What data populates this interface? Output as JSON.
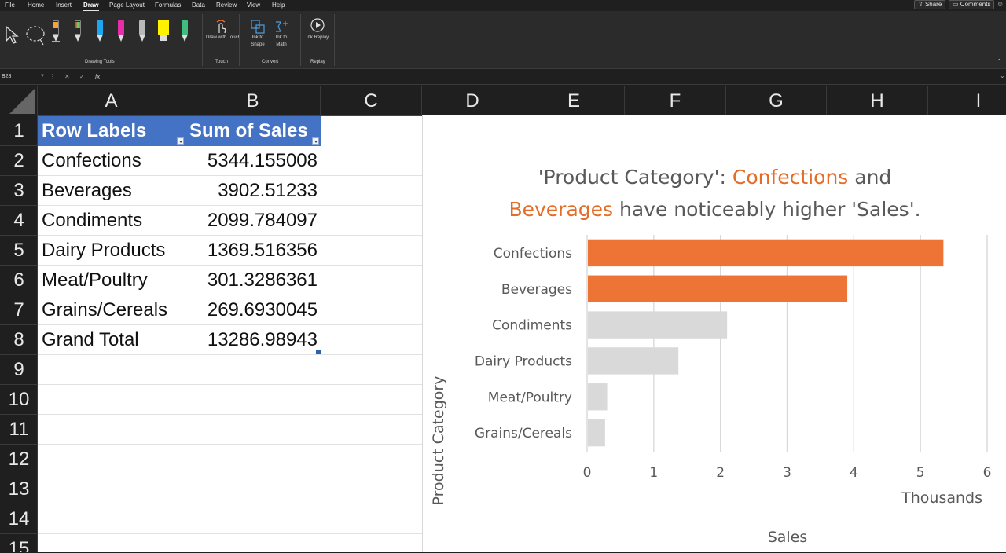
{
  "menubar": {
    "tabs": [
      "File",
      "Home",
      "Insert",
      "Draw",
      "Page Layout",
      "Formulas",
      "Data",
      "Review",
      "View",
      "Help"
    ],
    "active_tab": "Draw",
    "share_label": "Share",
    "comments_label": "Comments"
  },
  "ribbon": {
    "groups": {
      "drawing_tools": "Drawing Tools",
      "touch": "Touch",
      "convert": "Convert",
      "replay": "Replay"
    },
    "buttons": {
      "draw_with_touch": "Draw with Touch",
      "ink_to_shape": "Ink to Shape",
      "ink_to_math": "Ink to Math",
      "ink_replay": "Ink Replay"
    },
    "pen_colors": [
      "#f6a33c",
      "#7cd24a",
      "#1ea7f0",
      "#e52fa8",
      "#b9b9b9",
      "#fff200",
      "#3fbf7f"
    ]
  },
  "formula_bar": {
    "name_box": "B28",
    "formula": ""
  },
  "grid": {
    "columns": [
      "A",
      "B",
      "C",
      "D",
      "E",
      "F",
      "G",
      "H",
      "I"
    ],
    "rows": [
      "1",
      "2",
      "3",
      "4",
      "5",
      "6",
      "7",
      "8",
      "9",
      "10",
      "11",
      "12",
      "13",
      "14",
      "15"
    ],
    "header": {
      "label_col": "Row Labels",
      "value_col": "Sum of Sales"
    },
    "data": [
      {
        "label": "Confections",
        "value": "5344.155008"
      },
      {
        "label": "Beverages",
        "value": "3902.51233"
      },
      {
        "label": "Condiments",
        "value": "2099.784097"
      },
      {
        "label": "Dairy Products",
        "value": "1369.516356"
      },
      {
        "label": "Meat/Poultry",
        "value": "301.3286361"
      },
      {
        "label": "Grains/Cereals",
        "value": "269.6930045"
      },
      {
        "label": "Grand Total",
        "value": "13286.98943"
      }
    ]
  },
  "chart_data": {
    "type": "bar",
    "orientation": "horizontal",
    "title_parts": [
      {
        "text": "'Product Category': ",
        "highlight": false
      },
      {
        "text": "Confections",
        "highlight": true
      },
      {
        "text": " and",
        "highlight": false
      },
      {
        "text": "Beverages",
        "highlight": true,
        "newline": true
      },
      {
        "text": " have noticeably higher 'Sales'.",
        "highlight": false
      }
    ],
    "categories": [
      "Confections",
      "Beverages",
      "Condiments",
      "Dairy Products",
      "Meat/Poultry",
      "Grains/Cereals"
    ],
    "values": [
      5.344155008,
      3.90251233,
      2.099784097,
      1.369516356,
      0.3013286361,
      0.2696930045
    ],
    "highlighted": [
      true,
      true,
      false,
      false,
      false,
      false
    ],
    "colors": {
      "highlight": "#ed7434",
      "muted": "#d9d9d9"
    },
    "xlim": [
      0,
      6
    ],
    "xticks": [
      "0",
      "1",
      "2",
      "3",
      "4",
      "5",
      "6"
    ],
    "units_label": "Thousands",
    "xlabel": "Sales",
    "ylabel": "Product Category",
    "grid": true
  }
}
